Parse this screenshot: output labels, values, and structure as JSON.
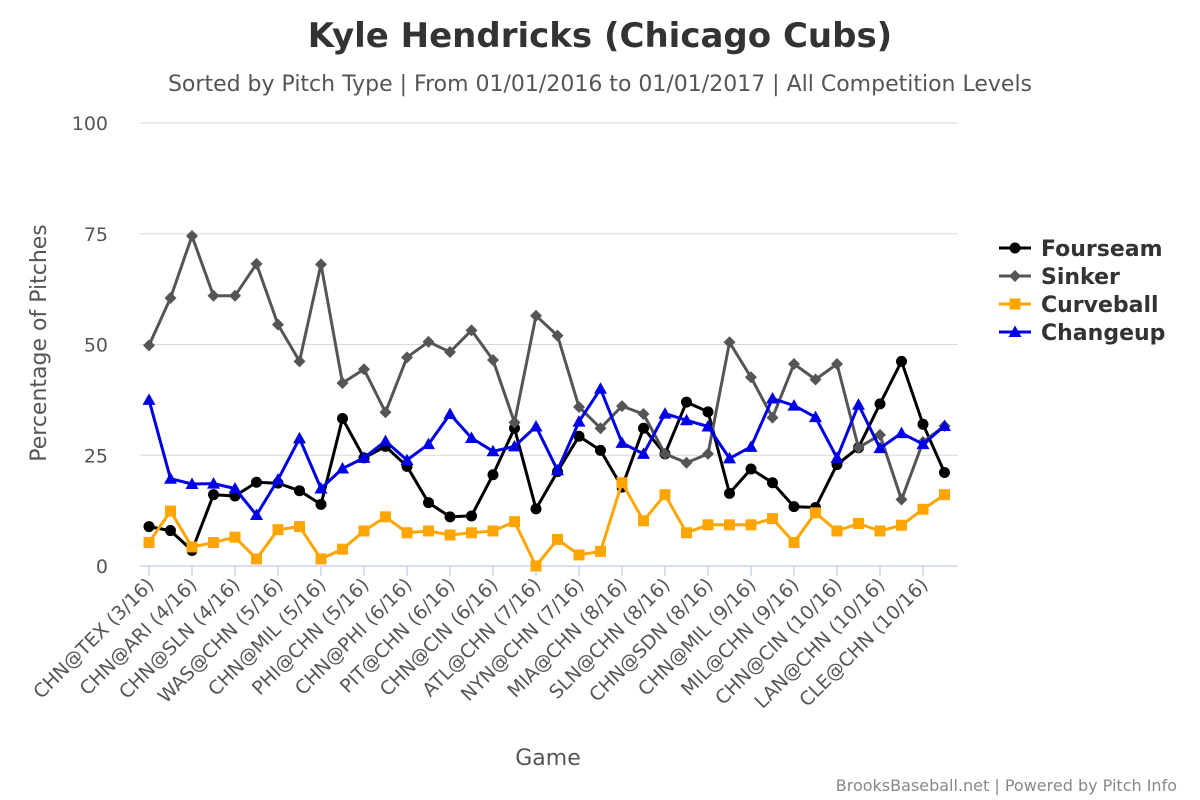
{
  "chart_data": {
    "type": "line",
    "title": "Kyle Hendricks (Chicago Cubs)",
    "subtitle": "Sorted by Pitch Type | From 01/01/2016 to 01/01/2017 | All Competition Levels",
    "xlabel": "Game",
    "ylabel": "Percentage of Pitches",
    "ylim": [
      0,
      100
    ],
    "yticks": [
      0,
      25,
      50,
      75,
      100
    ],
    "grid": true,
    "legend_position": "right",
    "x_tick_labels": [
      "CHN@TEX (3/16)",
      "CHN@ARI (4/16)",
      "CHN@SLN (4/16)",
      "WAS@CHN (5/16)",
      "CHN@MIL (5/16)",
      "PHI@CHN (5/16)",
      "CHN@PHI (6/16)",
      "PIT@CHN (6/16)",
      "CHN@CIN (6/16)",
      "ATL@CHN (7/16)",
      "NYN@CHN (7/16)",
      "MIA@CHN (8/16)",
      "SLN@CHN (8/16)",
      "CHN@SDN (8/16)",
      "CHN@MIL (9/16)",
      "MIL@CHN (9/16)",
      "CHN@CIN (10/16)",
      "LAN@CHN (10/16)",
      "CLE@CHN (10/16)"
    ],
    "series": [
      {
        "name": "Fourseam",
        "color": "#000000",
        "marker": "circle",
        "values": [
          8.9,
          8.0,
          3.5,
          16.1,
          15.8,
          18.9,
          18.7,
          17.0,
          13.9,
          33.3,
          24.4,
          27.0,
          22.5,
          14.3,
          11.1,
          11.3,
          20.6,
          31.1,
          12.9,
          21.3,
          29.3,
          26.1,
          17.8,
          31.1,
          25.3,
          37.0,
          34.8,
          16.4,
          21.9,
          18.8,
          13.4,
          13.2,
          22.9,
          26.7,
          36.6,
          46.2,
          32.0,
          21.1
        ]
      },
      {
        "name": "Sinker",
        "color": "#555555",
        "marker": "diamond",
        "values": [
          49.8,
          60.5,
          74.5,
          61.0,
          61.0,
          68.2,
          54.5,
          46.2,
          68.1,
          41.3,
          44.4,
          34.7,
          47.1,
          50.6,
          48.3,
          53.2,
          46.5,
          32.4,
          56.5,
          52.0,
          35.9,
          31.1,
          36.1,
          34.3,
          25.3,
          23.3,
          25.3,
          50.5,
          42.6,
          33.5,
          45.6,
          42.1,
          45.6,
          26.7,
          29.6,
          15.0,
          28.0,
          31.6
        ]
      },
      {
        "name": "Curveball",
        "color": "#ffa500",
        "marker": "square",
        "values": [
          5.3,
          12.4,
          4.3,
          5.3,
          6.5,
          1.6,
          8.2,
          8.9,
          1.6,
          3.8,
          7.9,
          11.1,
          7.5,
          7.9,
          7.0,
          7.5,
          7.9,
          10.0,
          0.0,
          6.0,
          2.5,
          3.3,
          18.8,
          10.2,
          16.1,
          7.5,
          9.3,
          9.3,
          9.3,
          10.7,
          5.3,
          12.0,
          7.9,
          9.6,
          7.9,
          9.2,
          12.8,
          16.1
        ]
      },
      {
        "name": "Changeup",
        "color": "#0000e6",
        "marker": "triangle",
        "values": [
          37.5,
          19.7,
          18.5,
          18.6,
          17.5,
          11.5,
          19.5,
          28.8,
          17.5,
          22.0,
          24.4,
          28.2,
          23.9,
          27.5,
          34.3,
          28.9,
          25.9,
          27.0,
          31.5,
          21.6,
          32.6,
          40.0,
          27.8,
          25.3,
          34.4,
          32.9,
          31.5,
          24.3,
          26.9,
          37.8,
          36.2,
          33.6,
          24.4,
          36.4,
          26.6,
          30.0,
          27.5,
          31.6
        ]
      }
    ]
  },
  "credits": "BrooksBaseball.net | Powered by Pitch Info"
}
